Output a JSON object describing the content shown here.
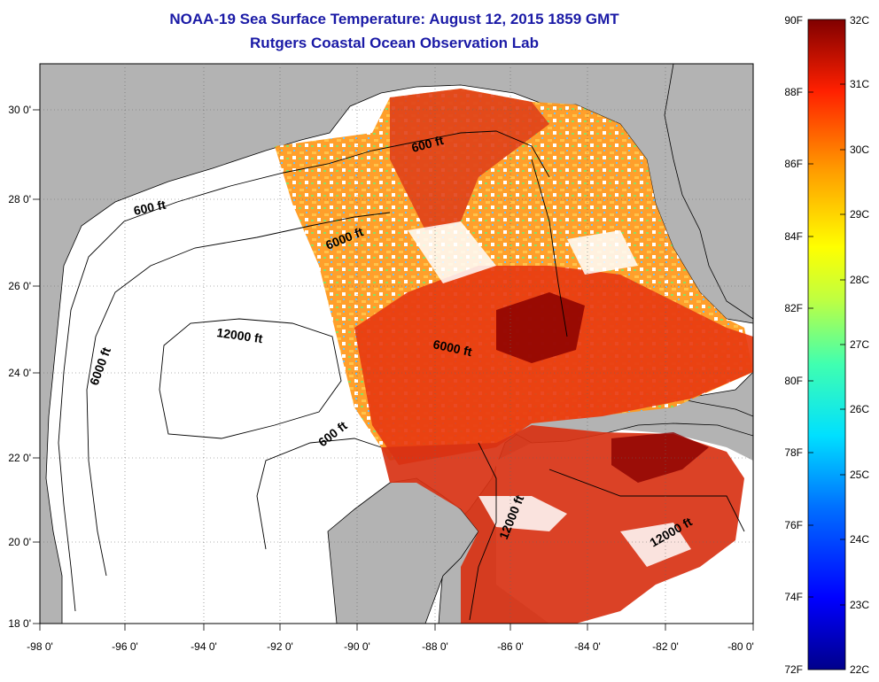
{
  "title": "NOAA-19 Sea Surface Temperature:  August 12, 2015 1859 GMT",
  "subtitle": "Rutgers Coastal Ocean Observation Lab",
  "lon_labels": [
    "-98 0'",
    "-96 0'",
    "-94 0'",
    "-92 0'",
    "-90 0'",
    "-88 0'",
    "-86 0'",
    "-84 0'",
    "-82 0'",
    "-80 0'"
  ],
  "lat_labels": [
    "30 0'",
    "28 0'",
    "26 0'",
    "24 0'",
    "22 0'",
    "20 0'",
    "18 0'"
  ],
  "contour_labels": {
    "c600_nw": "600 ft",
    "c600_ne": "600 ft",
    "c600_s": "600 ft",
    "c6000_n": "6000 ft",
    "c6000_w": "6000 ft",
    "c6000_e": "6000 ft",
    "c12000_c": "12000 ft",
    "c12000_yuc": "12000 ft",
    "c12000_car": "12000 ft"
  },
  "colorbar": {
    "f_labels": [
      "90F",
      "88F",
      "86F",
      "84F",
      "82F",
      "80F",
      "78F",
      "76F",
      "74F",
      "72F"
    ],
    "c_labels": [
      "32C",
      "31C",
      "30C",
      "29C",
      "28C",
      "27C",
      "26C",
      "25C",
      "24C",
      "23C",
      "22C"
    ],
    "range_f": [
      72,
      90
    ],
    "range_c": [
      22,
      32
    ]
  },
  "colors": {
    "title": "#1a1aa6",
    "land": "#b3b3b3",
    "nodata": "#ffffff",
    "sst_hot": "#8b0000",
    "sst_warm": "#e83a10",
    "sst_mid": "#ff8c1a"
  }
}
